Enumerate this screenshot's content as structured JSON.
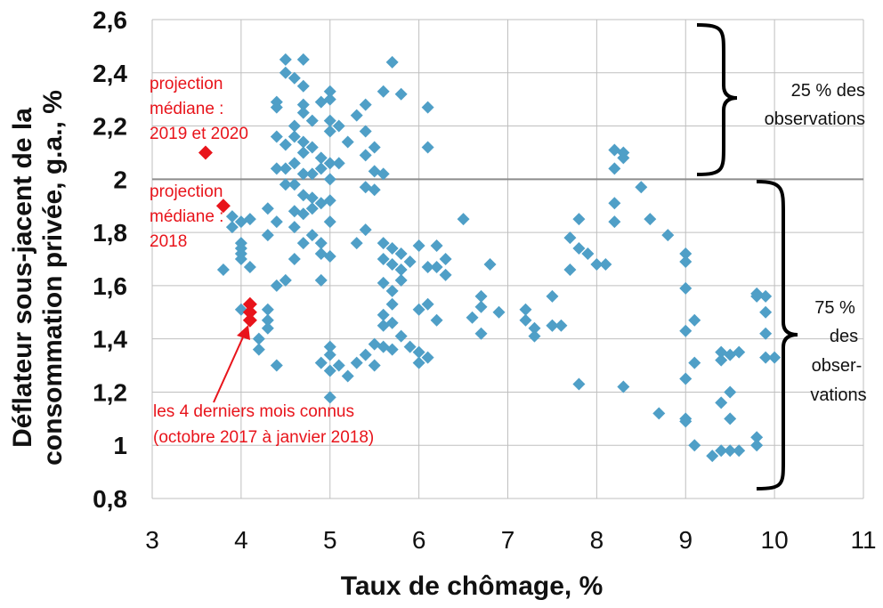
{
  "chart_data": {
    "type": "scatter",
    "xlabel": "Taux de chômage, %",
    "ylabel_lines": [
      "Déflateur sous-jacent de la",
      "consommation privée, g.a., %"
    ],
    "xlim": [
      3,
      11
    ],
    "ylim": [
      0.8,
      2.6
    ],
    "x_ticks": [
      3,
      4,
      5,
      6,
      7,
      8,
      9,
      10,
      11
    ],
    "x_tick_labels": [
      "3",
      "4",
      "5",
      "6",
      "7",
      "8",
      "9",
      "10",
      "11"
    ],
    "y_ticks": [
      0.8,
      1.0,
      1.2,
      1.4,
      1.6,
      1.8,
      2.0,
      2.2,
      2.4,
      2.6
    ],
    "y_tick_labels": [
      "0,8",
      "1",
      "1,2",
      "1,4",
      "1,6",
      "1,8",
      "2",
      "2,2",
      "2,4",
      "2,6"
    ],
    "grid": true,
    "reference_line_y": 2.0,
    "colors": {
      "observations": "#4f9fc7",
      "highlight": "#e8141b",
      "grid": "#bfbfbf",
      "refline": "#8c8c8c"
    },
    "series": [
      {
        "points": [
          [
            4.5,
            2.45
          ],
          [
            4.7,
            2.45
          ],
          [
            5.7,
            2.44
          ],
          [
            4.5,
            2.4
          ],
          [
            4.6,
            2.38
          ],
          [
            4.7,
            2.35
          ],
          [
            5.0,
            2.33
          ],
          [
            5.6,
            2.33
          ],
          [
            5.8,
            2.32
          ],
          [
            4.7,
            2.28
          ],
          [
            4.4,
            2.29
          ],
          [
            5.0,
            2.3
          ],
          [
            4.9,
            2.29
          ],
          [
            5.4,
            2.28
          ],
          [
            6.1,
            2.27
          ],
          [
            4.4,
            2.27
          ],
          [
            4.7,
            2.25
          ],
          [
            5.3,
            2.24
          ],
          [
            5.0,
            2.22
          ],
          [
            4.8,
            2.22
          ],
          [
            5.1,
            2.2
          ],
          [
            4.6,
            2.2
          ],
          [
            5.0,
            2.18
          ],
          [
            5.4,
            2.18
          ],
          [
            4.4,
            2.16
          ],
          [
            4.6,
            2.16
          ],
          [
            4.7,
            2.14
          ],
          [
            5.2,
            2.14
          ],
          [
            4.5,
            2.13
          ],
          [
            4.8,
            2.12
          ],
          [
            5.5,
            2.12
          ],
          [
            6.1,
            2.12
          ],
          [
            4.7,
            2.1
          ],
          [
            5.4,
            2.09
          ],
          [
            4.9,
            2.08
          ],
          [
            4.6,
            2.06
          ],
          [
            5.0,
            2.06
          ],
          [
            5.1,
            2.06
          ],
          [
            4.5,
            2.04
          ],
          [
            4.9,
            2.04
          ],
          [
            4.4,
            2.04
          ],
          [
            5.5,
            2.03
          ],
          [
            4.7,
            2.02
          ],
          [
            5.6,
            2.02
          ],
          [
            5.0,
            2.0
          ],
          [
            4.8,
            2.02
          ],
          [
            4.6,
            1.98
          ],
          [
            4.5,
            1.98
          ],
          [
            5.4,
            1.97
          ],
          [
            5.5,
            1.96
          ],
          [
            4.7,
            1.94
          ],
          [
            4.8,
            1.93
          ],
          [
            5.0,
            1.92
          ],
          [
            4.9,
            1.91
          ],
          [
            4.8,
            1.89
          ],
          [
            4.3,
            1.89
          ],
          [
            4.6,
            1.88
          ],
          [
            4.7,
            1.87
          ],
          [
            3.9,
            1.86
          ],
          [
            4.1,
            1.85
          ],
          [
            4.0,
            1.84
          ],
          [
            4.4,
            1.84
          ],
          [
            5.0,
            1.84
          ],
          [
            3.9,
            1.82
          ],
          [
            4.6,
            1.82
          ],
          [
            5.4,
            1.81
          ],
          [
            4.3,
            1.79
          ],
          [
            4.8,
            1.79
          ],
          [
            4.0,
            1.76
          ],
          [
            4.7,
            1.76
          ],
          [
            4.9,
            1.76
          ],
          [
            4.0,
            1.74
          ],
          [
            5.3,
            1.76
          ],
          [
            5.6,
            1.76
          ],
          [
            4.0,
            1.72
          ],
          [
            5.7,
            1.74
          ],
          [
            4.9,
            1.72
          ],
          [
            5.8,
            1.72
          ],
          [
            5.0,
            1.71
          ],
          [
            4.0,
            1.7
          ],
          [
            4.6,
            1.7
          ],
          [
            5.6,
            1.7
          ],
          [
            5.9,
            1.69
          ],
          [
            4.1,
            1.67
          ],
          [
            3.8,
            1.66
          ],
          [
            5.7,
            1.68
          ],
          [
            5.8,
            1.66
          ],
          [
            4.5,
            1.62
          ],
          [
            4.4,
            1.6
          ],
          [
            4.9,
            1.62
          ],
          [
            5.8,
            1.62
          ],
          [
            5.6,
            1.61
          ],
          [
            5.7,
            1.58
          ],
          [
            6.1,
            1.67
          ],
          [
            6.3,
            1.7
          ],
          [
            6.2,
            1.67
          ],
          [
            6.0,
            1.75
          ],
          [
            6.2,
            1.75
          ],
          [
            6.3,
            1.64
          ],
          [
            4.0,
            1.51
          ],
          [
            4.3,
            1.51
          ],
          [
            4.3,
            1.47
          ],
          [
            4.3,
            1.44
          ],
          [
            4.2,
            1.4
          ],
          [
            4.2,
            1.36
          ],
          [
            4.4,
            1.3
          ],
          [
            5.7,
            1.53
          ],
          [
            5.6,
            1.49
          ],
          [
            5.6,
            1.45
          ],
          [
            5.7,
            1.46
          ],
          [
            5.8,
            1.41
          ],
          [
            5.6,
            1.37
          ],
          [
            5.7,
            1.36
          ],
          [
            5.9,
            1.37
          ],
          [
            6.0,
            1.51
          ],
          [
            6.0,
            1.35
          ],
          [
            6.1,
            1.53
          ],
          [
            6.2,
            1.47
          ],
          [
            6.1,
            1.33
          ],
          [
            6.0,
            1.31
          ],
          [
            5.5,
            1.38
          ],
          [
            5.4,
            1.34
          ],
          [
            5.3,
            1.31
          ],
          [
            5.5,
            1.3
          ],
          [
            5.1,
            1.3
          ],
          [
            5.0,
            1.28
          ],
          [
            5.0,
            1.34
          ],
          [
            5.0,
            1.37
          ],
          [
            4.9,
            1.31
          ],
          [
            5.2,
            1.26
          ],
          [
            5.0,
            1.18
          ],
          [
            6.5,
            1.85
          ],
          [
            6.8,
            1.68
          ],
          [
            6.7,
            1.56
          ],
          [
            6.6,
            1.48
          ],
          [
            6.7,
            1.52
          ],
          [
            6.9,
            1.5
          ],
          [
            6.7,
            1.42
          ],
          [
            7.2,
            1.51
          ],
          [
            7.2,
            1.47
          ],
          [
            7.3,
            1.44
          ],
          [
            7.3,
            1.41
          ],
          [
            7.5,
            1.56
          ],
          [
            7.5,
            1.45
          ],
          [
            7.5,
            1.45
          ],
          [
            7.6,
            1.45
          ],
          [
            7.7,
            1.78
          ],
          [
            7.8,
            1.74
          ],
          [
            7.7,
            1.66
          ],
          [
            7.9,
            1.72
          ],
          [
            8.0,
            1.68
          ],
          [
            8.1,
            1.68
          ],
          [
            7.8,
            1.85
          ],
          [
            8.2,
            1.91
          ],
          [
            8.2,
            1.84
          ],
          [
            8.2,
            2.11
          ],
          [
            8.3,
            2.08
          ],
          [
            8.2,
            2.04
          ],
          [
            8.3,
            2.1
          ],
          [
            8.5,
            1.97
          ],
          [
            8.6,
            1.85
          ],
          [
            8.8,
            1.79
          ],
          [
            9.0,
            1.72
          ],
          [
            9.0,
            1.69
          ],
          [
            9.0,
            1.59
          ],
          [
            9.0,
            1.43
          ],
          [
            9.1,
            1.47
          ],
          [
            9.1,
            1.31
          ],
          [
            9.0,
            1.25
          ],
          [
            9.0,
            1.1
          ],
          [
            9.0,
            1.09
          ],
          [
            9.1,
            1.0
          ],
          [
            8.7,
            1.12
          ],
          [
            8.3,
            1.22
          ],
          [
            7.8,
            1.23
          ],
          [
            9.3,
            0.96
          ],
          [
            9.4,
            0.98
          ],
          [
            9.5,
            0.98
          ],
          [
            9.6,
            0.98
          ],
          [
            9.4,
            1.16
          ],
          [
            9.5,
            1.2
          ],
          [
            9.5,
            1.1
          ],
          [
            9.4,
            1.35
          ],
          [
            9.5,
            1.34
          ],
          [
            9.6,
            1.35
          ],
          [
            9.4,
            1.32
          ],
          [
            9.8,
            1.57
          ],
          [
            9.9,
            1.56
          ],
          [
            9.8,
            1.56
          ],
          [
            9.9,
            1.5
          ],
          [
            9.9,
            1.42
          ],
          [
            9.9,
            1.33
          ],
          [
            10.0,
            1.33
          ],
          [
            9.8,
            1.03
          ],
          [
            9.8,
            1.0
          ]
        ]
      },
      {
        "points": [
          [
            4.1,
            1.53
          ],
          [
            4.1,
            1.5
          ],
          [
            4.1,
            1.47
          ],
          [
            3.6,
            2.1
          ],
          [
            3.8,
            1.9
          ]
        ]
      }
    ],
    "annotations": {
      "proj_2019_2020": [
        "projection",
        "médiane :",
        "2019 et 2020"
      ],
      "proj_2018": [
        "projection",
        "médiane :",
        "2018"
      ],
      "last_months": [
        "les 4 derniers mois connus",
        "(octobre 2017 à janvier 2018)"
      ],
      "upper_share": [
        "25 % des",
        "observations"
      ],
      "lower_share": [
        "75 %",
        "des",
        "obser-",
        "vations"
      ]
    }
  }
}
